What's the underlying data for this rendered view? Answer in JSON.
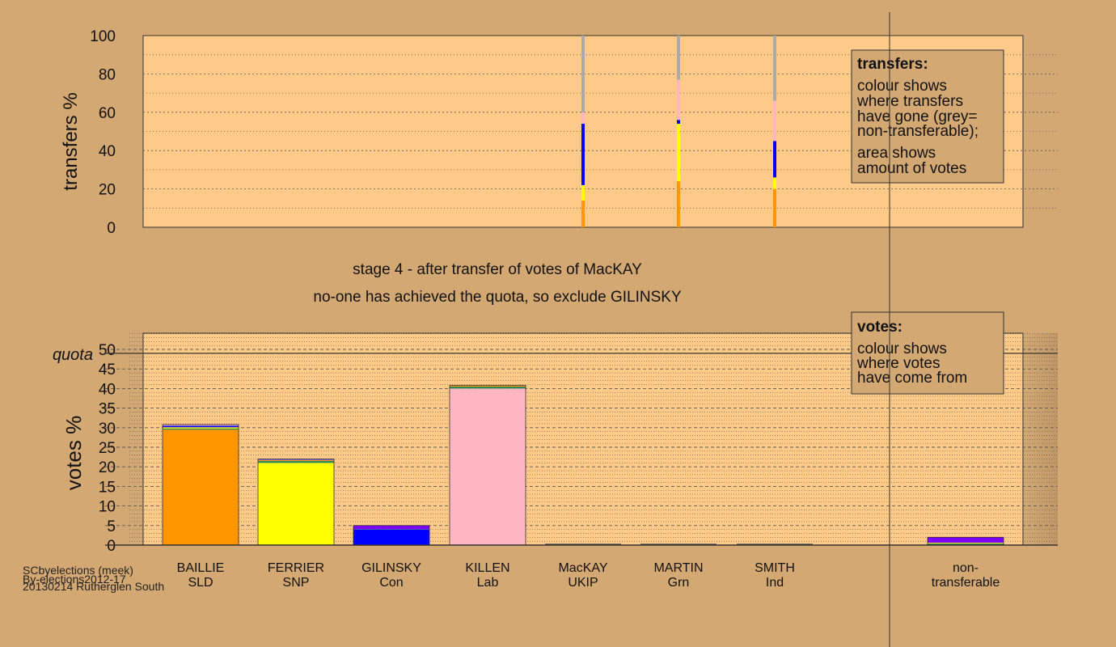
{
  "colors": {
    "page_bg": "#D4A872",
    "plot_bg": "#FFC987",
    "orange": "#FF9500",
    "yellow": "#FFFF00",
    "blue": "#0000FF",
    "pink": "#FFB6C1",
    "grey": "#AAAAAA",
    "green": "#2E8B57",
    "purple": "#7F00FF",
    "dark": "#333333"
  },
  "stage_title": "stage 4 - after transfer of votes of MacKAY",
  "stage_subtitle": "no-one has achieved the quota, so exclude GILINSKY",
  "footer": {
    "line1": "SCbyelections (meek)",
    "line2": "By-elections2012-17",
    "line3": "20130214 Rutherglen South"
  },
  "legend_transfers": {
    "title": "transfers:",
    "lines": [
      "colour shows",
      "where transfers",
      "have gone (grey=",
      "non-transferable);",
      "area shows",
      "amount of votes"
    ]
  },
  "legend_votes": {
    "title": "votes:",
    "lines": [
      "colour shows",
      "where votes",
      "have come from"
    ]
  },
  "chart_data": [
    {
      "type": "bar",
      "subtype": "stacked-percent-transfers",
      "ylabel": "transfers %",
      "ylim": [
        0,
        100
      ],
      "yticks": [
        0,
        20,
        40,
        60,
        80,
        100
      ],
      "grid": true,
      "legend_position": "top-right",
      "categories": [
        "BAILLIE SLD",
        "FERRIER SNP",
        "GILINSKY Con",
        "KILLEN Lab",
        "MacKAY UKIP",
        "MARTIN Grn",
        "SMITH Ind"
      ],
      "columns": [
        {
          "category": "MacKAY UKIP",
          "segments": [
            {
              "color": "orange",
              "value": 14
            },
            {
              "color": "yellow",
              "value": 8
            },
            {
              "color": "blue",
              "value": 32
            },
            {
              "color": "pink",
              "value": 6
            },
            {
              "color": "grey",
              "value": 40
            }
          ]
        },
        {
          "category": "MARTIN Grn",
          "segments": [
            {
              "color": "orange",
              "value": 24
            },
            {
              "color": "yellow",
              "value": 30
            },
            {
              "color": "blue",
              "value": 2
            },
            {
              "color": "pink",
              "value": 21
            },
            {
              "color": "grey",
              "value": 23
            }
          ]
        },
        {
          "category": "SMITH Ind",
          "segments": [
            {
              "color": "orange",
              "value": 20
            },
            {
              "color": "yellow",
              "value": 6
            },
            {
              "color": "blue",
              "value": 19
            },
            {
              "color": "pink",
              "value": 21
            },
            {
              "color": "grey",
              "value": 34
            }
          ]
        }
      ]
    },
    {
      "type": "bar",
      "subtype": "stacked-votes",
      "ylabel": "votes %",
      "ylim": [
        0,
        50
      ],
      "yticks": [
        0,
        5,
        10,
        15,
        20,
        25,
        30,
        35,
        40,
        45,
        50
      ],
      "quota": 49,
      "quota_label": "quota",
      "grid": true,
      "legend_position": "top-right",
      "bars": [
        {
          "name": "BAILLIE",
          "party": "SLD",
          "segments": [
            {
              "color": "orange",
              "value": 29.5
            },
            {
              "color": "green",
              "value": 0.3
            },
            {
              "color": "yellow",
              "value": 0.3
            },
            {
              "color": "blue",
              "value": 0.4
            },
            {
              "color": "pink",
              "value": 0.3
            }
          ]
        },
        {
          "name": "FERRIER",
          "party": "SNP",
          "segments": [
            {
              "color": "yellow",
              "value": 21.0
            },
            {
              "color": "green",
              "value": 0.5
            },
            {
              "color": "orange",
              "value": 0.2
            },
            {
              "color": "blue",
              "value": 0.1
            },
            {
              "color": "pink",
              "value": 0.2
            }
          ]
        },
        {
          "name": "GILINSKY",
          "party": "Con",
          "segments": [
            {
              "color": "blue",
              "value": 4.0
            },
            {
              "color": "green",
              "value": 0.1
            },
            {
              "color": "purple",
              "value": 0.9
            }
          ]
        },
        {
          "name": "KILLEN",
          "party": "Lab",
          "segments": [
            {
              "color": "pink",
              "value": 40.0
            },
            {
              "color": "green",
              "value": 0.5
            },
            {
              "color": "orange",
              "value": 0.2
            },
            {
              "color": "yellow",
              "value": 0.1
            }
          ]
        },
        {
          "name": "MacKAY",
          "party": "UKIP",
          "segments": []
        },
        {
          "name": "MARTIN",
          "party": "Grn",
          "segments": []
        },
        {
          "name": "SMITH",
          "party": "Ind",
          "segments": []
        },
        {
          "name": "non-",
          "party": "transferable",
          "segments": [
            {
              "color": "green",
              "value": 0.4
            },
            {
              "color": "yellow",
              "value": 0.2
            },
            {
              "color": "purple",
              "value": 1.4
            }
          ]
        }
      ]
    }
  ]
}
